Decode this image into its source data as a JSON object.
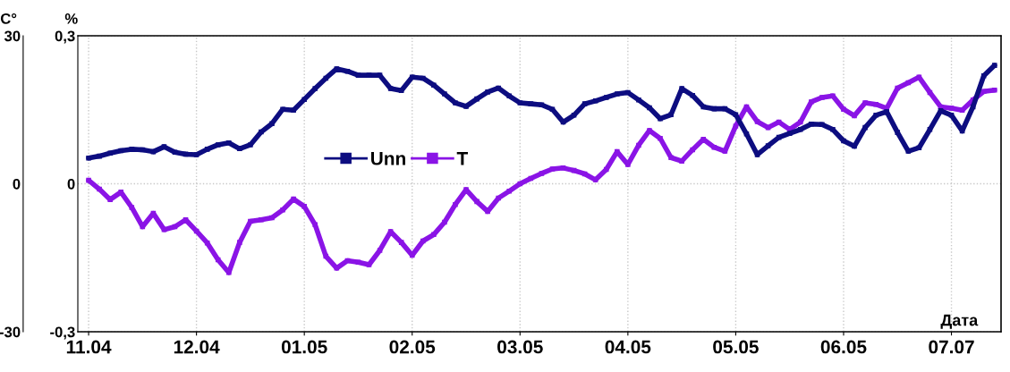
{
  "chart_data": {
    "type": "line",
    "xlabel": "Дата",
    "ylabel": "C°",
    "y2label": "%",
    "categories": [
      "11.04",
      null,
      null,
      null,
      null,
      null,
      null,
      null,
      null,
      null,
      "12.04",
      null,
      null,
      null,
      null,
      null,
      null,
      null,
      null,
      null,
      "01.05",
      null,
      null,
      null,
      null,
      null,
      null,
      null,
      null,
      null,
      "02.05",
      null,
      null,
      null,
      null,
      null,
      null,
      null,
      null,
      null,
      "03.05",
      null,
      null,
      null,
      null,
      null,
      null,
      null,
      null,
      null,
      "04.05",
      null,
      null,
      null,
      null,
      null,
      null,
      null,
      null,
      null,
      "05.05",
      null,
      null,
      null,
      null,
      null,
      null,
      null,
      null,
      null,
      "06.05",
      null,
      null,
      null,
      null,
      null,
      null,
      null,
      null,
      null,
      "07.07",
      null,
      null,
      null,
      null
    ],
    "ylim": [
      -30,
      30
    ],
    "yticks": [
      -30,
      0,
      30
    ],
    "y2lim": [
      -0.3,
      0.3
    ],
    "y2ticks": [
      {
        "value": -0.3,
        "label": "-0,3"
      },
      0,
      {
        "value": 0.3,
        "label": "0,3"
      }
    ],
    "grid": true,
    "legend": "center left",
    "marker": "square",
    "line_style": "solid",
    "series": [
      {
        "name": "Unn",
        "color": "#0d0d80",
        "axis": "y2",
        "values": [
          0.052,
          0.056,
          0.062,
          0.067,
          0.07,
          0.069,
          0.065,
          0.075,
          0.064,
          0.06,
          0.059,
          0.07,
          0.079,
          0.083,
          0.071,
          0.079,
          0.105,
          0.122,
          0.151,
          0.149,
          0.171,
          0.193,
          0.214,
          0.233,
          0.228,
          0.22,
          0.22,
          0.22,
          0.193,
          0.189,
          0.216,
          0.214,
          0.2,
          0.182,
          0.164,
          0.157,
          0.172,
          0.186,
          0.194,
          0.178,
          0.164,
          0.162,
          0.16,
          0.151,
          0.125,
          0.139,
          0.162,
          0.168,
          0.175,
          0.182,
          0.185,
          0.17,
          0.154,
          0.132,
          0.14,
          0.193,
          0.179,
          0.156,
          0.152,
          0.152,
          0.14,
          0.101,
          0.059,
          0.077,
          0.094,
          0.102,
          0.11,
          0.121,
          0.12,
          0.11,
          0.087,
          0.076,
          0.114,
          0.139,
          0.146,
          0.104,
          0.066,
          0.073,
          0.11,
          0.148,
          0.139,
          0.107,
          0.156,
          0.219,
          0.24
        ]
      },
      {
        "name": "T",
        "color": "#8a14e6",
        "values": [
          0.7,
          -1.1,
          -3.2,
          -1.7,
          -4.8,
          -8.7,
          -6.0,
          -9.3,
          -8.7,
          -7.3,
          -9.6,
          -12.0,
          -15.4,
          -18.0,
          -11.9,
          -7.6,
          -7.3,
          -6.9,
          -5.3,
          -3.1,
          -4.6,
          -8.3,
          -14.7,
          -17.1,
          -15.6,
          -15.9,
          -16.4,
          -13.5,
          -9.7,
          -11.9,
          -14.5,
          -11.6,
          -10.3,
          -7.8,
          -4.2,
          -1.2,
          -3.6,
          -5.6,
          -2.9,
          -1.5,
          0.0,
          1.1,
          2.1,
          3.0,
          3.2,
          2.7,
          2.0,
          0.8,
          2.9,
          6.5,
          3.9,
          7.8,
          10.8,
          9.2,
          5.3,
          4.6,
          6.9,
          9.0,
          7.4,
          6.6,
          11.7,
          15.6,
          12.6,
          11.4,
          12.5,
          11.0,
          12.5,
          16.6,
          17.5,
          17.8,
          15.1,
          13.8,
          16.4,
          16.1,
          15.3,
          19.4,
          20.5,
          21.6,
          18.5,
          15.6,
          15.3,
          14.9,
          17.0,
          18.7,
          19.0
        ]
      }
    ]
  }
}
